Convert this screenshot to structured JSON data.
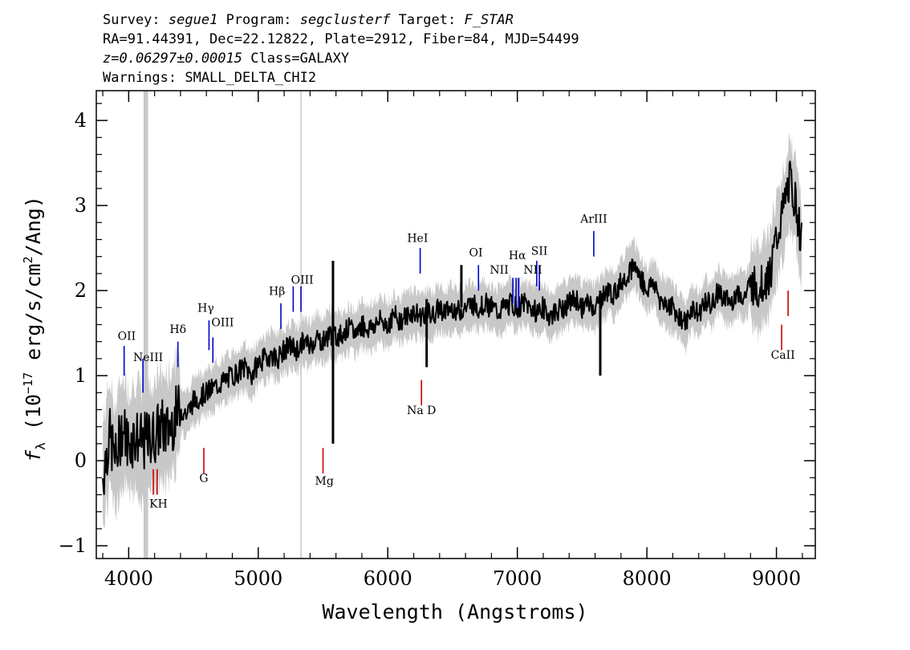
{
  "header": {
    "survey_label": "Survey:",
    "survey": "segue1",
    "program_label": "Program:",
    "program": "segclusterf",
    "target_label": "Target:",
    "target": "F_STAR",
    "line2": "RA=91.44391, Dec=22.12822, Plate=2912, Fiber=84, MJD=54499",
    "redshift": "z=0.06297±0.00015",
    "class": "Class=GALAXY",
    "warnings": "Warnings: SMALL_DELTA_CHI2"
  },
  "chart_data": {
    "type": "line",
    "xlabel": "Wavelength (Angstroms)",
    "ylabel_main": "f",
    "ylabel_sub": "λ",
    "ylabel_open": " (10",
    "ylabel_exp": "−17",
    "ylabel_mid": " erg/s/cm",
    "ylabel_exp2": "2",
    "ylabel_close": "/Ang)",
    "xlim": [
      3750,
      9300
    ],
    "ylim": [
      -1.15,
      4.35
    ],
    "xticks": [
      4000,
      5000,
      6000,
      7000,
      8000,
      9000
    ],
    "xtick_labels": [
      "4000",
      "5000",
      "6000",
      "7000",
      "8000",
      "9000"
    ],
    "yticks": [
      -1,
      0,
      1,
      2,
      3,
      4
    ],
    "ytick_labels": [
      "−1",
      "0",
      "1",
      "2",
      "3",
      "4"
    ],
    "series": [
      {
        "color": "#000000",
        "x": [
          3800,
          3850,
          3900,
          3950,
          4000,
          4050,
          4100,
          4150,
          4200,
          4250,
          4300,
          4350,
          4400,
          4450,
          4500,
          4550,
          4600,
          4650,
          4700,
          4750,
          4800,
          4850,
          4900,
          4950,
          5000,
          5050,
          5100,
          5150,
          5200,
          5250,
          5300,
          5350,
          5400,
          5450,
          5500,
          5550,
          5600,
          5650,
          5700,
          5750,
          5800,
          5850,
          5900,
          5950,
          6000,
          6050,
          6100,
          6150,
          6200,
          6250,
          6300,
          6350,
          6400,
          6450,
          6500,
          6550,
          6600,
          6650,
          6700,
          6750,
          6800,
          6850,
          6900,
          6950,
          7000,
          7050,
          7100,
          7150,
          7200,
          7250,
          7300,
          7350,
          7400,
          7450,
          7500,
          7550,
          7600,
          7650,
          7700,
          7750,
          7800,
          7850,
          7900,
          7950,
          8000,
          8050,
          8100,
          8150,
          8200,
          8250,
          8300,
          8350,
          8400,
          8450,
          8500,
          8550,
          8600,
          8650,
          8700,
          8750,
          8800,
          8850,
          8900,
          8950,
          9000,
          9050,
          9100,
          9150,
          9200
        ],
        "y": [
          -0.2,
          0.3,
          0.0,
          0.4,
          0.2,
          0.3,
          0.2,
          0.25,
          0.3,
          0.4,
          0.35,
          0.5,
          0.6,
          0.55,
          0.7,
          0.75,
          0.8,
          0.85,
          0.9,
          0.95,
          1.0,
          1.05,
          1.1,
          1.0,
          1.15,
          1.2,
          1.25,
          1.2,
          1.3,
          1.35,
          1.3,
          1.4,
          1.35,
          1.45,
          1.4,
          1.5,
          1.45,
          1.5,
          1.55,
          1.5,
          1.6,
          1.55,
          1.6,
          1.65,
          1.6,
          1.7,
          1.65,
          1.7,
          1.75,
          1.7,
          1.75,
          1.7,
          1.8,
          1.75,
          1.8,
          1.75,
          1.8,
          1.85,
          1.8,
          1.85,
          1.8,
          1.75,
          1.8,
          1.85,
          1.8,
          1.85,
          1.8,
          1.75,
          1.8,
          1.7,
          1.75,
          1.8,
          1.85,
          1.9,
          1.8,
          1.85,
          1.8,
          1.9,
          2.0,
          1.95,
          2.1,
          2.2,
          2.3,
          2.15,
          2.0,
          2.1,
          1.9,
          1.85,
          1.8,
          1.7,
          1.6,
          1.8,
          1.7,
          1.9,
          1.8,
          2.0,
          1.9,
          1.85,
          2.0,
          1.9,
          2.1,
          2.0,
          2.1,
          2.2,
          2.6,
          2.9,
          3.3,
          3.0,
          2.5
        ]
      }
    ],
    "spikes": [
      {
        "x": 5577,
        "y1": 0.2,
        "y2": 2.35
      },
      {
        "x": 6300,
        "y1": 1.1,
        "y2": 1.9
      },
      {
        "x": 6568,
        "y1": 1.8,
        "y2": 2.3
      },
      {
        "x": 7640,
        "y1": 1.0,
        "y2": 2.0
      }
    ],
    "mask_band": {
      "x1": 4115,
      "x2": 4150
    },
    "sky_line": 5330,
    "emission_lines": [
      {
        "label": "OII",
        "x": 3965,
        "y1": 1.0,
        "y2": 1.35,
        "lx": 3985,
        "ly": 1.42
      },
      {
        "label": "NeIII",
        "x": 4110,
        "y1": 0.8,
        "y2": 1.2,
        "lx": 4150,
        "ly": 1.17
      },
      {
        "label": "Hδ",
        "x": 4380,
        "y1": 1.1,
        "y2": 1.4,
        "lx": 4380,
        "ly": 1.5
      },
      {
        "label": "Hγ",
        "x": 4620,
        "y1": 1.3,
        "y2": 1.65,
        "lx": 4595,
        "ly": 1.75
      },
      {
        "label": "OIII",
        "x": 4650,
        "y1": 1.15,
        "y2": 1.45,
        "lx": 4725,
        "ly": 1.58
      },
      {
        "label": "Hβ",
        "x": 5175,
        "y1": 1.55,
        "y2": 1.85,
        "lx": 5145,
        "ly": 1.95
      },
      {
        "label": "OIII",
        "x": 5270,
        "y1": 1.75,
        "y2": 2.05,
        "lx": 5340,
        "ly": 2.08
      },
      {
        "label": "OIII",
        "x": 5330,
        "y1": 1.75,
        "y2": 2.05,
        "lx": "",
        "ly": ""
      },
      {
        "label": "HeI",
        "x": 6250,
        "y1": 2.2,
        "y2": 2.5,
        "lx": 6230,
        "ly": 2.57
      },
      {
        "label": "OI",
        "x": 6700,
        "y1": 2.0,
        "y2": 2.3,
        "lx": 6680,
        "ly": 2.4
      },
      {
        "label": "NII",
        "x": 6965,
        "y1": 1.85,
        "y2": 2.15,
        "lx": 6860,
        "ly": 2.2
      },
      {
        "label": "Hα",
        "x": 6990,
        "y1": 1.8,
        "y2": 2.15,
        "lx": 7000,
        "ly": 2.37
      },
      {
        "label": "NII",
        "x": 7010,
        "y1": 1.8,
        "y2": 2.15,
        "lx": "",
        "ly": ""
      },
      {
        "label": "SII",
        "x": 7150,
        "y1": 2.05,
        "y2": 2.35,
        "lx": 7170,
        "ly": 2.42
      },
      {
        "label": "NII",
        "x": 7170,
        "y1": 2.0,
        "y2": 2.3,
        "lx": 7120,
        "ly": 2.2
      },
      {
        "label": "ArIII",
        "x": 7590,
        "y1": 2.4,
        "y2": 2.7,
        "lx": 7590,
        "ly": 2.8
      }
    ],
    "absorption_lines": [
      {
        "label": "KH",
        "x": 4190,
        "y1": -0.1,
        "y2": -0.4,
        "lx": 4230,
        "ly": -0.55
      },
      {
        "label": "",
        "x": 4220,
        "y1": -0.1,
        "y2": -0.4,
        "lx": "",
        "ly": ""
      },
      {
        "label": "G",
        "x": 4580,
        "y1": 0.15,
        "y2": -0.15,
        "lx": 4580,
        "ly": -0.25
      },
      {
        "label": "Mg",
        "x": 5500,
        "y1": 0.15,
        "y2": -0.15,
        "lx": 5510,
        "ly": -0.28
      },
      {
        "label": "Na D",
        "x": 6260,
        "y1": 0.95,
        "y2": 0.65,
        "lx": 6260,
        "ly": 0.55
      },
      {
        "label": "CaII",
        "x": 9040,
        "y1": 1.6,
        "y2": 1.3,
        "lx": 9050,
        "ly": 1.2
      },
      {
        "label": "",
        "x": 9090,
        "y1": 2.0,
        "y2": 1.7,
        "lx": "",
        "ly": ""
      }
    ],
    "colors": {
      "flux": "#000000",
      "noise": "#c8c8c8",
      "emission": "#0000cc",
      "absorption": "#cc0000",
      "mask": "#c8c8c8"
    }
  }
}
